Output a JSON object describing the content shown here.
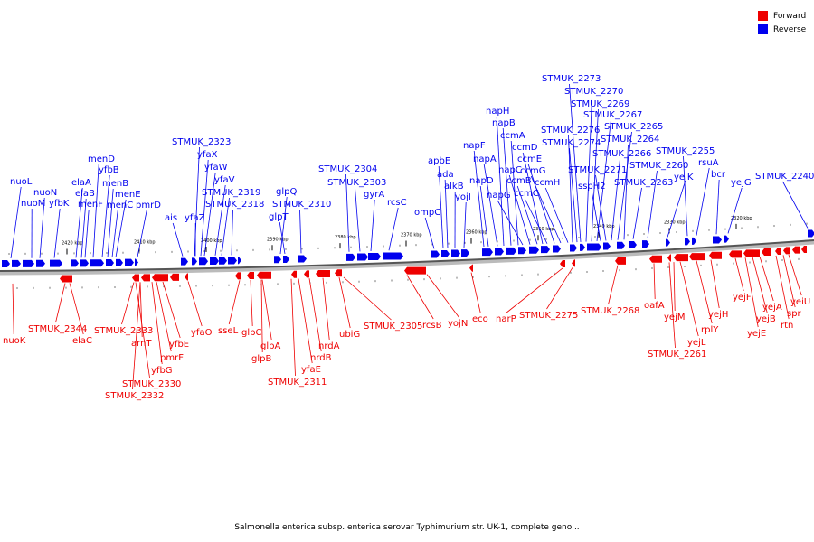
{
  "legend": {
    "forward_label": "Forward",
    "reverse_label": "Reverse",
    "forward_color": "#ee0000",
    "reverse_color": "#0000ee"
  },
  "caption": "Salmonella enterica subsp. enterica serovar Typhimurium str. UK-1, complete geno...",
  "ticks": [
    "2420 kbp",
    "2410 kbp",
    "2400 kbp",
    "2390 kbp",
    "2380 kbp",
    "2370 kbp",
    "2360 kbp",
    "2350 kbp",
    "2340 kbp",
    "2330 kbp",
    "2320 kbp"
  ],
  "reverse_labels": [
    "nuoL",
    "nuoM",
    "nuoN",
    "yfbK",
    "elaA",
    "elaB",
    "menF",
    "menD",
    "yfbB",
    "menB",
    "menC",
    "menE",
    "pmrD",
    "ais",
    "STMUK_2323",
    "yfaX",
    "yfaW",
    "yfaZ",
    "yfaV",
    "STMUK_2319",
    "STMUK_2318",
    "glpQ",
    "glpT",
    "STMUK_2310",
    "STMUK_2304",
    "STMUK_2303",
    "gyrA",
    "rcsC",
    "ompC",
    "apbE",
    "ada",
    "alkB",
    "yojI",
    "napF",
    "napD",
    "napA",
    "napH",
    "napB",
    "ccmA",
    "napG",
    "napC",
    "ccmB",
    "ccmD",
    "ccmC",
    "ccmE",
    "ccmG",
    "ccmH",
    "STMUK_2276",
    "STMUK_2274",
    "STMUK_2273",
    "STMUK_2270",
    "STMUK_2269",
    "STMUK_2267",
    "sspH2",
    "STMUK_2271",
    "STMUK_2266",
    "STMUK_2265",
    "STMUK_2264",
    "STMUK_2263",
    "STMUK_2260",
    "yejK",
    "STMUK_2255",
    "rsuA",
    "bcr",
    "yejG",
    "STMUK_2240"
  ],
  "forward_labels": [
    "nuoK",
    "STMUK_2344",
    "elaC",
    "STMUK_2333",
    "arnT",
    "STMUK_2330",
    "STMUK_2332",
    "yfbG",
    "pmrF",
    "yfbE",
    "yfaO",
    "sseL",
    "glpC",
    "glpA",
    "glpB",
    "yfaE",
    "STMUK_2311",
    "nrdB",
    "nrdA",
    "ubiG",
    "STMUK_2305",
    "rcsB",
    "yojN",
    "eco",
    "narP",
    "STMUK_2275",
    "STMUK_2268",
    "oafA",
    "STMUK_2261",
    "yejM",
    "yejL",
    "rplY",
    "yejH",
    "yejF",
    "yejE",
    "yejB",
    "yejA",
    "rtn",
    "spr",
    "yeiU"
  ]
}
